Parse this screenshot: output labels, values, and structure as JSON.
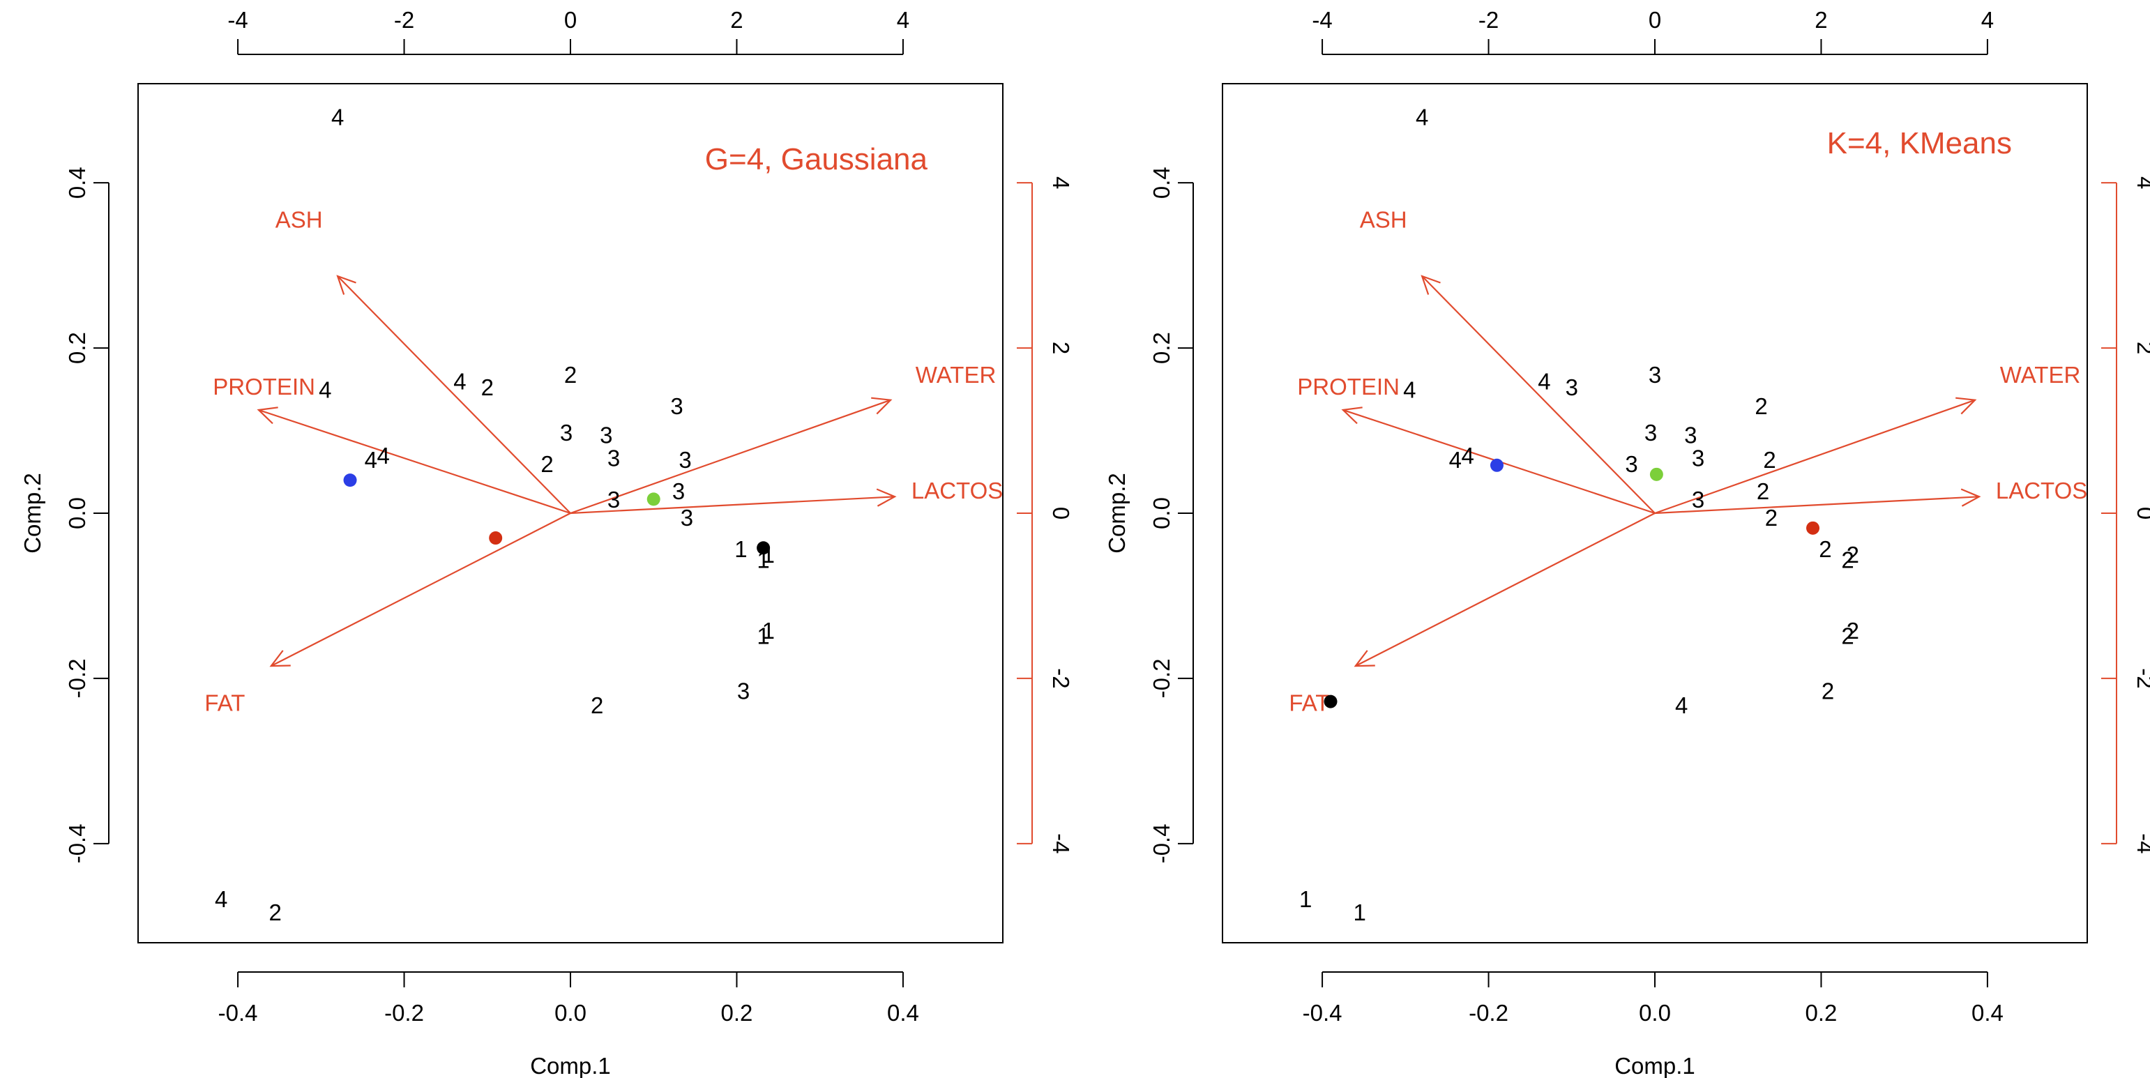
{
  "colors": {
    "arrow": "#e14b2e",
    "loading_text": "#e14b2e",
    "axis": "#000000",
    "annotation": "#e14b2e",
    "centroid_blue": "#2b3ee6",
    "centroid_red": "#d32f12",
    "centroid_green": "#7ccf3a",
    "centroid_black": "#000000"
  },
  "chart_data": [
    {
      "type": "scatter",
      "subtype": "biplot",
      "title": "",
      "annotation": "G=4, Gaussiana",
      "xlabel": "Comp.1",
      "ylabel": "Comp.2",
      "xlim": [
        -0.52,
        0.52
      ],
      "ylim": [
        -0.52,
        0.52
      ],
      "x_ticks": [
        "-0.4",
        "-0.2",
        "0.0",
        "0.2",
        "0.4"
      ],
      "y_ticks": [
        "-0.4",
        "-0.2",
        "0.0",
        "0.2",
        "0.4"
      ],
      "secondary_ticks": [
        "-4",
        "-2",
        "0",
        "2",
        "4"
      ],
      "grid": false,
      "points": [
        {
          "label": "4",
          "x": -0.28,
          "y": 0.48
        },
        {
          "label": "4",
          "x": -0.295,
          "y": 0.15
        },
        {
          "label": "4",
          "x": -0.133,
          "y": 0.16
        },
        {
          "label": "2",
          "x": -0.1,
          "y": 0.153
        },
        {
          "label": "2",
          "x": 0.0,
          "y": 0.168
        },
        {
          "label": "3",
          "x": 0.128,
          "y": 0.13
        },
        {
          "label": "3",
          "x": -0.005,
          "y": 0.098
        },
        {
          "label": "3",
          "x": 0.043,
          "y": 0.095
        },
        {
          "label": "3",
          "x": 0.052,
          "y": 0.067
        },
        {
          "label": "3",
          "x": 0.138,
          "y": 0.065
        },
        {
          "label": "2",
          "x": -0.028,
          "y": 0.06
        },
        {
          "label": "4",
          "x": -0.24,
          "y": 0.065
        },
        {
          "label": "4",
          "x": -0.225,
          "y": 0.07
        },
        {
          "label": "3",
          "x": 0.052,
          "y": 0.017
        },
        {
          "label": "3",
          "x": 0.13,
          "y": 0.027
        },
        {
          "label": "3",
          "x": 0.14,
          "y": -0.005
        },
        {
          "label": "1",
          "x": 0.205,
          "y": -0.043
        },
        {
          "label": "1",
          "x": 0.238,
          "y": -0.05
        },
        {
          "label": "1",
          "x": 0.232,
          "y": -0.056
        },
        {
          "label": "1",
          "x": 0.232,
          "y": -0.148
        },
        {
          "label": "1",
          "x": 0.238,
          "y": -0.142
        },
        {
          "label": "3",
          "x": 0.208,
          "y": -0.215
        },
        {
          "label": "2",
          "x": 0.032,
          "y": -0.232
        },
        {
          "label": "4",
          "x": -0.42,
          "y": -0.467
        },
        {
          "label": "2",
          "x": -0.355,
          "y": -0.483
        }
      ],
      "centroids": [
        {
          "x": -0.265,
          "y": 0.04,
          "color": "#2b3ee6"
        },
        {
          "x": -0.09,
          "y": -0.03,
          "color": "#d32f12"
        },
        {
          "x": 0.1,
          "y": 0.017,
          "color": "#7ccf3a"
        },
        {
          "x": 0.232,
          "y": -0.042,
          "color": "#000000"
        }
      ],
      "loadings": [
        {
          "label": "ASH",
          "x": -0.28,
          "y": 0.287
        },
        {
          "label": "PROTEIN",
          "x": -0.375,
          "y": 0.125
        },
        {
          "label": "WATER",
          "x": 0.385,
          "y": 0.137
        },
        {
          "label": "LACTOSE",
          "x": 0.39,
          "y": 0.02
        },
        {
          "label": "FAT",
          "x": -0.36,
          "y": -0.185
        }
      ],
      "loading_label_positions": [
        {
          "label": "ASH",
          "x": -0.355,
          "y": 0.355
        },
        {
          "label": "PROTEIN",
          "x": -0.43,
          "y": 0.153
        },
        {
          "label": "WATER",
          "x": 0.415,
          "y": 0.167
        },
        {
          "label": "LACTOSE",
          "x": 0.41,
          "y": 0.027
        },
        {
          "label": "FAT",
          "x": -0.44,
          "y": -0.23
        }
      ]
    },
    {
      "type": "scatter",
      "subtype": "biplot",
      "title": "",
      "annotation": "K=4, KMeans",
      "xlabel": "Comp.1",
      "ylabel": "Comp.2",
      "xlim": [
        -0.52,
        0.52
      ],
      "ylim": [
        -0.52,
        0.52
      ],
      "x_ticks": [
        "-0.4",
        "-0.2",
        "0.0",
        "0.2",
        "0.4"
      ],
      "y_ticks": [
        "-0.4",
        "-0.2",
        "0.0",
        "0.2",
        "0.4"
      ],
      "secondary_ticks": [
        "-4",
        "-2",
        "0",
        "2",
        "4"
      ],
      "grid": false,
      "points": [
        {
          "label": "4",
          "x": -0.28,
          "y": 0.48
        },
        {
          "label": "4",
          "x": -0.295,
          "y": 0.15
        },
        {
          "label": "4",
          "x": -0.133,
          "y": 0.16
        },
        {
          "label": "3",
          "x": -0.1,
          "y": 0.153
        },
        {
          "label": "3",
          "x": 0.0,
          "y": 0.168
        },
        {
          "label": "2",
          "x": 0.128,
          "y": 0.13
        },
        {
          "label": "3",
          "x": -0.005,
          "y": 0.098
        },
        {
          "label": "3",
          "x": 0.043,
          "y": 0.095
        },
        {
          "label": "3",
          "x": 0.052,
          "y": 0.067
        },
        {
          "label": "2",
          "x": 0.138,
          "y": 0.065
        },
        {
          "label": "3",
          "x": -0.028,
          "y": 0.06
        },
        {
          "label": "4",
          "x": -0.24,
          "y": 0.065
        },
        {
          "label": "4",
          "x": -0.225,
          "y": 0.07
        },
        {
          "label": "3",
          "x": 0.052,
          "y": 0.017
        },
        {
          "label": "2",
          "x": 0.13,
          "y": 0.027
        },
        {
          "label": "2",
          "x": 0.14,
          "y": -0.005
        },
        {
          "label": "2",
          "x": 0.205,
          "y": -0.043
        },
        {
          "label": "2",
          "x": 0.238,
          "y": -0.05
        },
        {
          "label": "2",
          "x": 0.232,
          "y": -0.056
        },
        {
          "label": "2",
          "x": 0.232,
          "y": -0.148
        },
        {
          "label": "2",
          "x": 0.238,
          "y": -0.142
        },
        {
          "label": "2",
          "x": 0.208,
          "y": -0.215
        },
        {
          "label": "4",
          "x": 0.032,
          "y": -0.232
        },
        {
          "label": "1",
          "x": -0.42,
          "y": -0.467
        },
        {
          "label": "1",
          "x": -0.355,
          "y": -0.483
        }
      ],
      "centroids": [
        {
          "x": -0.19,
          "y": 0.058,
          "color": "#2b3ee6"
        },
        {
          "x": 0.002,
          "y": 0.047,
          "color": "#7ccf3a"
        },
        {
          "x": 0.19,
          "y": -0.018,
          "color": "#d32f12"
        },
        {
          "x": -0.39,
          "y": -0.228,
          "color": "#000000"
        }
      ],
      "loadings": [
        {
          "label": "ASH",
          "x": -0.28,
          "y": 0.287
        },
        {
          "label": "PROTEIN",
          "x": -0.375,
          "y": 0.125
        },
        {
          "label": "WATER",
          "x": 0.385,
          "y": 0.137
        },
        {
          "label": "LACTOSE",
          "x": 0.39,
          "y": 0.02
        },
        {
          "label": "FAT",
          "x": -0.36,
          "y": -0.185
        }
      ],
      "loading_label_positions": [
        {
          "label": "ASH",
          "x": -0.355,
          "y": 0.355
        },
        {
          "label": "PROTEIN",
          "x": -0.43,
          "y": 0.153
        },
        {
          "label": "WATER",
          "x": 0.415,
          "y": 0.167
        },
        {
          "label": "LACTOSE",
          "x": 0.41,
          "y": 0.027
        },
        {
          "label": "FAT",
          "x": -0.44,
          "y": -0.23
        }
      ]
    }
  ]
}
